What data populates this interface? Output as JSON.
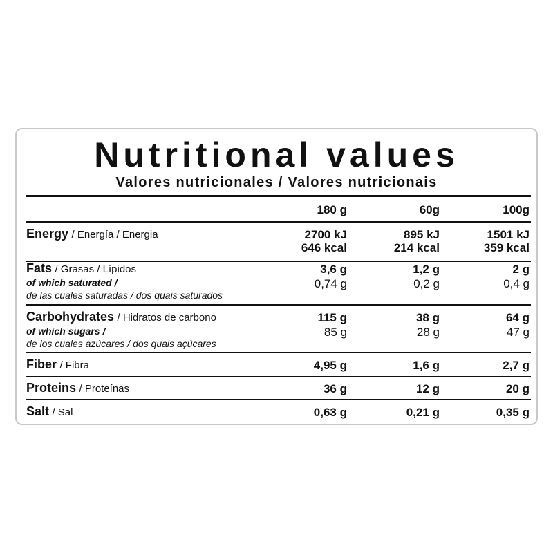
{
  "header": {
    "title": "Nutritional values",
    "subtitle": "Valores nutricionales / Valores nutricionais"
  },
  "table": {
    "columns": [
      "180 g",
      "60g",
      "100g"
    ],
    "rows": [
      {
        "name": "Energy",
        "alt": "/ Energía / Energia",
        "values": [
          "2700 kJ",
          "895 kJ",
          "1501 kJ"
        ],
        "values2": [
          "646 kcal",
          "214 kcal",
          "359 kcal"
        ]
      },
      {
        "name": "Fats",
        "alt": "/ Grasas / Lípidos",
        "values": [
          "3,6 g",
          "1,2 g",
          "2 g"
        ],
        "sub": {
          "name": "of which saturated /",
          "alt": "de las cuales saturadas / dos quais saturados",
          "values": [
            "0,74 g",
            "0,2 g",
            "0,4 g"
          ]
        }
      },
      {
        "name": "Carbohydrates",
        "alt": "/ Hidratos de carbono",
        "values": [
          "115 g",
          "38 g",
          "64 g"
        ],
        "sub": {
          "name": "of which sugars /",
          "alt": "de los cuales azúcares / dos quais açúcares",
          "values": [
            "85 g",
            "28 g",
            "47 g"
          ]
        }
      },
      {
        "name": "Fiber",
        "alt": "/ Fibra",
        "values": [
          "4,95 g",
          "1,6 g",
          "2,7 g"
        ]
      },
      {
        "name": "Proteins",
        "alt": "/ Proteínas",
        "values": [
          "36 g",
          "12 g",
          "20 g"
        ]
      },
      {
        "name": "Salt",
        "alt": "/ Sal",
        "values": [
          "0,63 g",
          "0,21 g",
          "0,35 g"
        ]
      }
    ]
  }
}
